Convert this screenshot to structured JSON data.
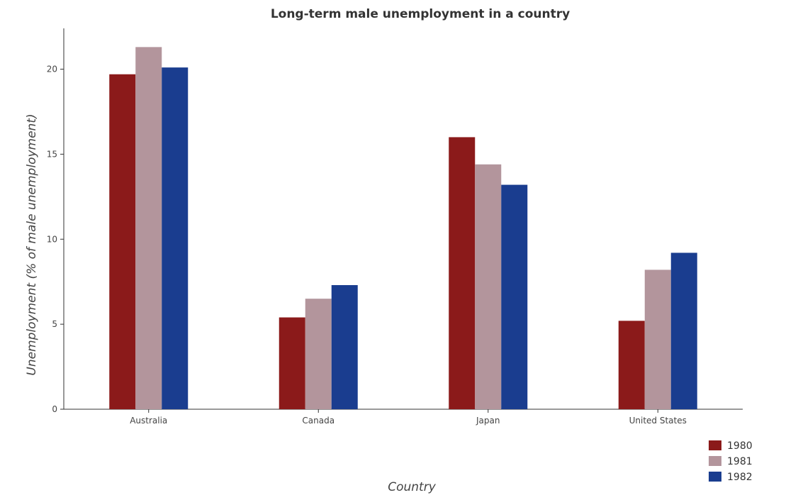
{
  "chart_data": {
    "type": "bar",
    "title": "Long-term male unemployment in a country",
    "xlabel": "Country",
    "ylabel": "Unemployment (% of male unemployment)",
    "categories": [
      "Australia",
      "Canada",
      "Japan",
      "United States"
    ],
    "series": [
      {
        "name": "1980",
        "color": "#8b1a1a",
        "values": [
          19.7,
          5.4,
          16.0,
          5.2
        ]
      },
      {
        "name": "1981",
        "color": "#b3959c",
        "values": [
          21.3,
          6.5,
          14.4,
          8.2
        ]
      },
      {
        "name": "1982",
        "color": "#1a3d8f",
        "values": [
          20.1,
          7.3,
          13.2,
          9.2
        ]
      }
    ],
    "yticks": [
      0,
      5,
      10,
      15,
      20
    ],
    "ylim": [
      0,
      22.4
    ],
    "grid": false,
    "legend_position": "bottom-right"
  }
}
